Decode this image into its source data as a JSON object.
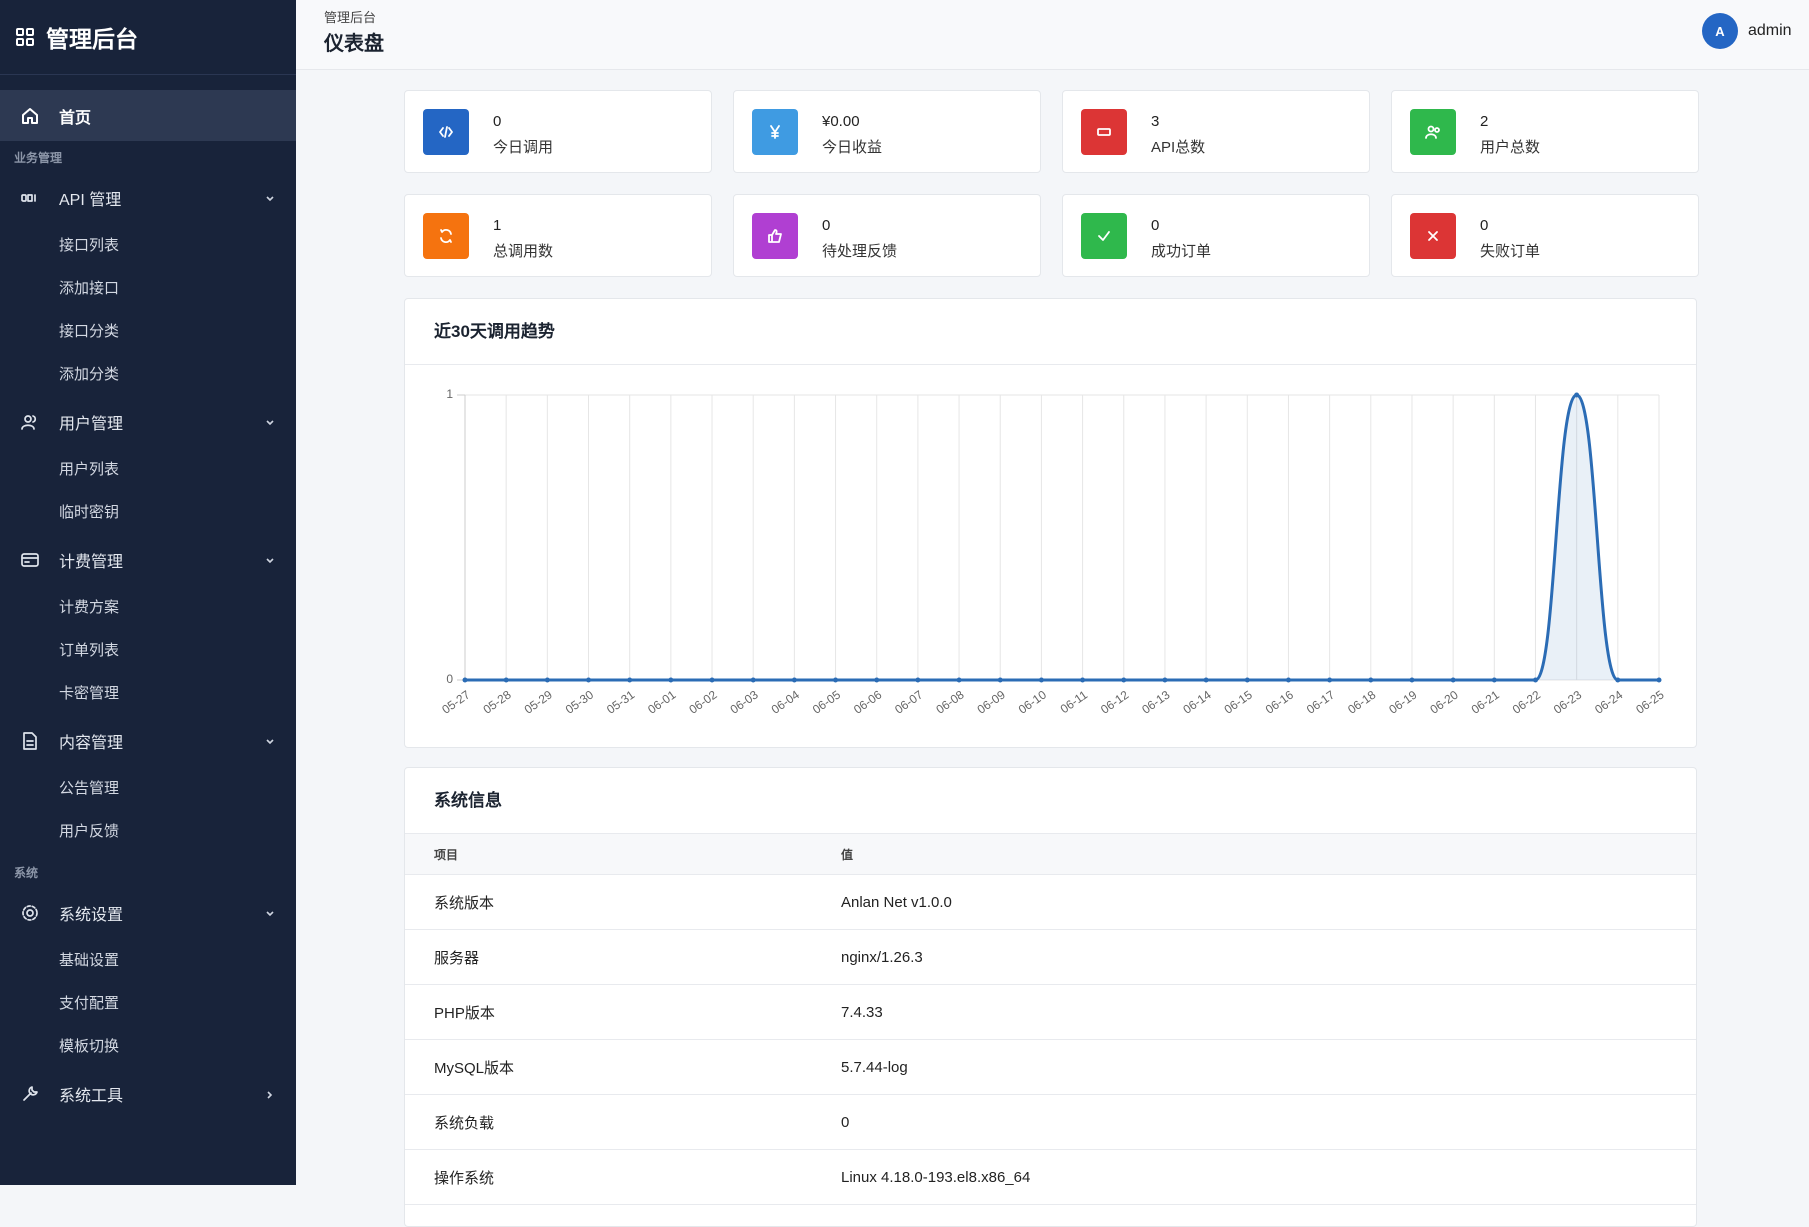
{
  "sidebar": {
    "brand": "管理后台",
    "home": "首页",
    "sections": [
      {
        "label": "业务管理",
        "groups": [
          {
            "label": "API 管理",
            "children": [
              "接口列表",
              "添加接口",
              "接口分类",
              "添加分类"
            ]
          },
          {
            "label": "用户管理",
            "children": [
              "用户列表",
              "临时密钥"
            ]
          },
          {
            "label": "计费管理",
            "children": [
              "计费方案",
              "订单列表",
              "卡密管理"
            ]
          },
          {
            "label": "内容管理",
            "children": [
              "公告管理",
              "用户反馈"
            ]
          }
        ]
      },
      {
        "label": "系统",
        "groups": [
          {
            "label": "系统设置",
            "children": [
              "基础设置",
              "支付配置",
              "模板切换"
            ]
          },
          {
            "label": "系统工具"
          }
        ]
      }
    ]
  },
  "header": {
    "breadcrumb": "管理后台",
    "title": "仪表盘",
    "avatar": "A",
    "user": "admin"
  },
  "stats": [
    {
      "value": 0,
      "label": "今日调用",
      "color": "#2466c4"
    },
    {
      "value": "¥0.00",
      "label": "今日收益",
      "color": "#3f9be2"
    },
    {
      "value": 3,
      "label": "API总数",
      "color": "#dc3535"
    },
    {
      "value": 2,
      "label": "用户总数",
      "color": "#2fb84c"
    },
    {
      "value": 1,
      "label": "总调用数",
      "color": "#f5730f"
    },
    {
      "value": 0,
      "label": "待处理反馈",
      "color": "#b03fd2"
    },
    {
      "value": 0,
      "label": "成功订单",
      "color": "#2fb84c"
    },
    {
      "value": 0,
      "label": "失败订单",
      "color": "#dc3535"
    }
  ],
  "chart_data": {
    "type": "line",
    "title": "近30天调用趋势",
    "categories": [
      "05-27",
      "05-28",
      "05-29",
      "05-30",
      "05-31",
      "06-01",
      "06-02",
      "06-03",
      "06-04",
      "06-05",
      "06-06",
      "06-07",
      "06-08",
      "06-09",
      "06-10",
      "06-11",
      "06-12",
      "06-13",
      "06-14",
      "06-15",
      "06-16",
      "06-17",
      "06-18",
      "06-19",
      "06-20",
      "06-21",
      "06-22",
      "06-23",
      "06-24",
      "06-25"
    ],
    "values": [
      0,
      0,
      0,
      0,
      0,
      0,
      0,
      0,
      0,
      0,
      0,
      0,
      0,
      0,
      0,
      0,
      0,
      0,
      0,
      0,
      0,
      0,
      0,
      0,
      0,
      0,
      0,
      1,
      0,
      0
    ],
    "color": "#2b6cb5",
    "ylim": [
      0,
      1
    ],
    "yticks": [
      0,
      1
    ],
    "grid": true
  },
  "system_info": {
    "title": "系统信息",
    "columns": [
      "项目",
      "值"
    ],
    "rows": [
      [
        "系统版本",
        "Anlan Net v1.0.0"
      ],
      [
        "服务器",
        "nginx/1.26.3"
      ],
      [
        "PHP版本",
        "7.4.33"
      ],
      [
        "MySQL版本",
        "5.7.44-log"
      ],
      [
        "系统负载",
        "0"
      ],
      [
        "操作系统",
        "Linux 4.18.0-193.el8.x86_64"
      ]
    ]
  }
}
